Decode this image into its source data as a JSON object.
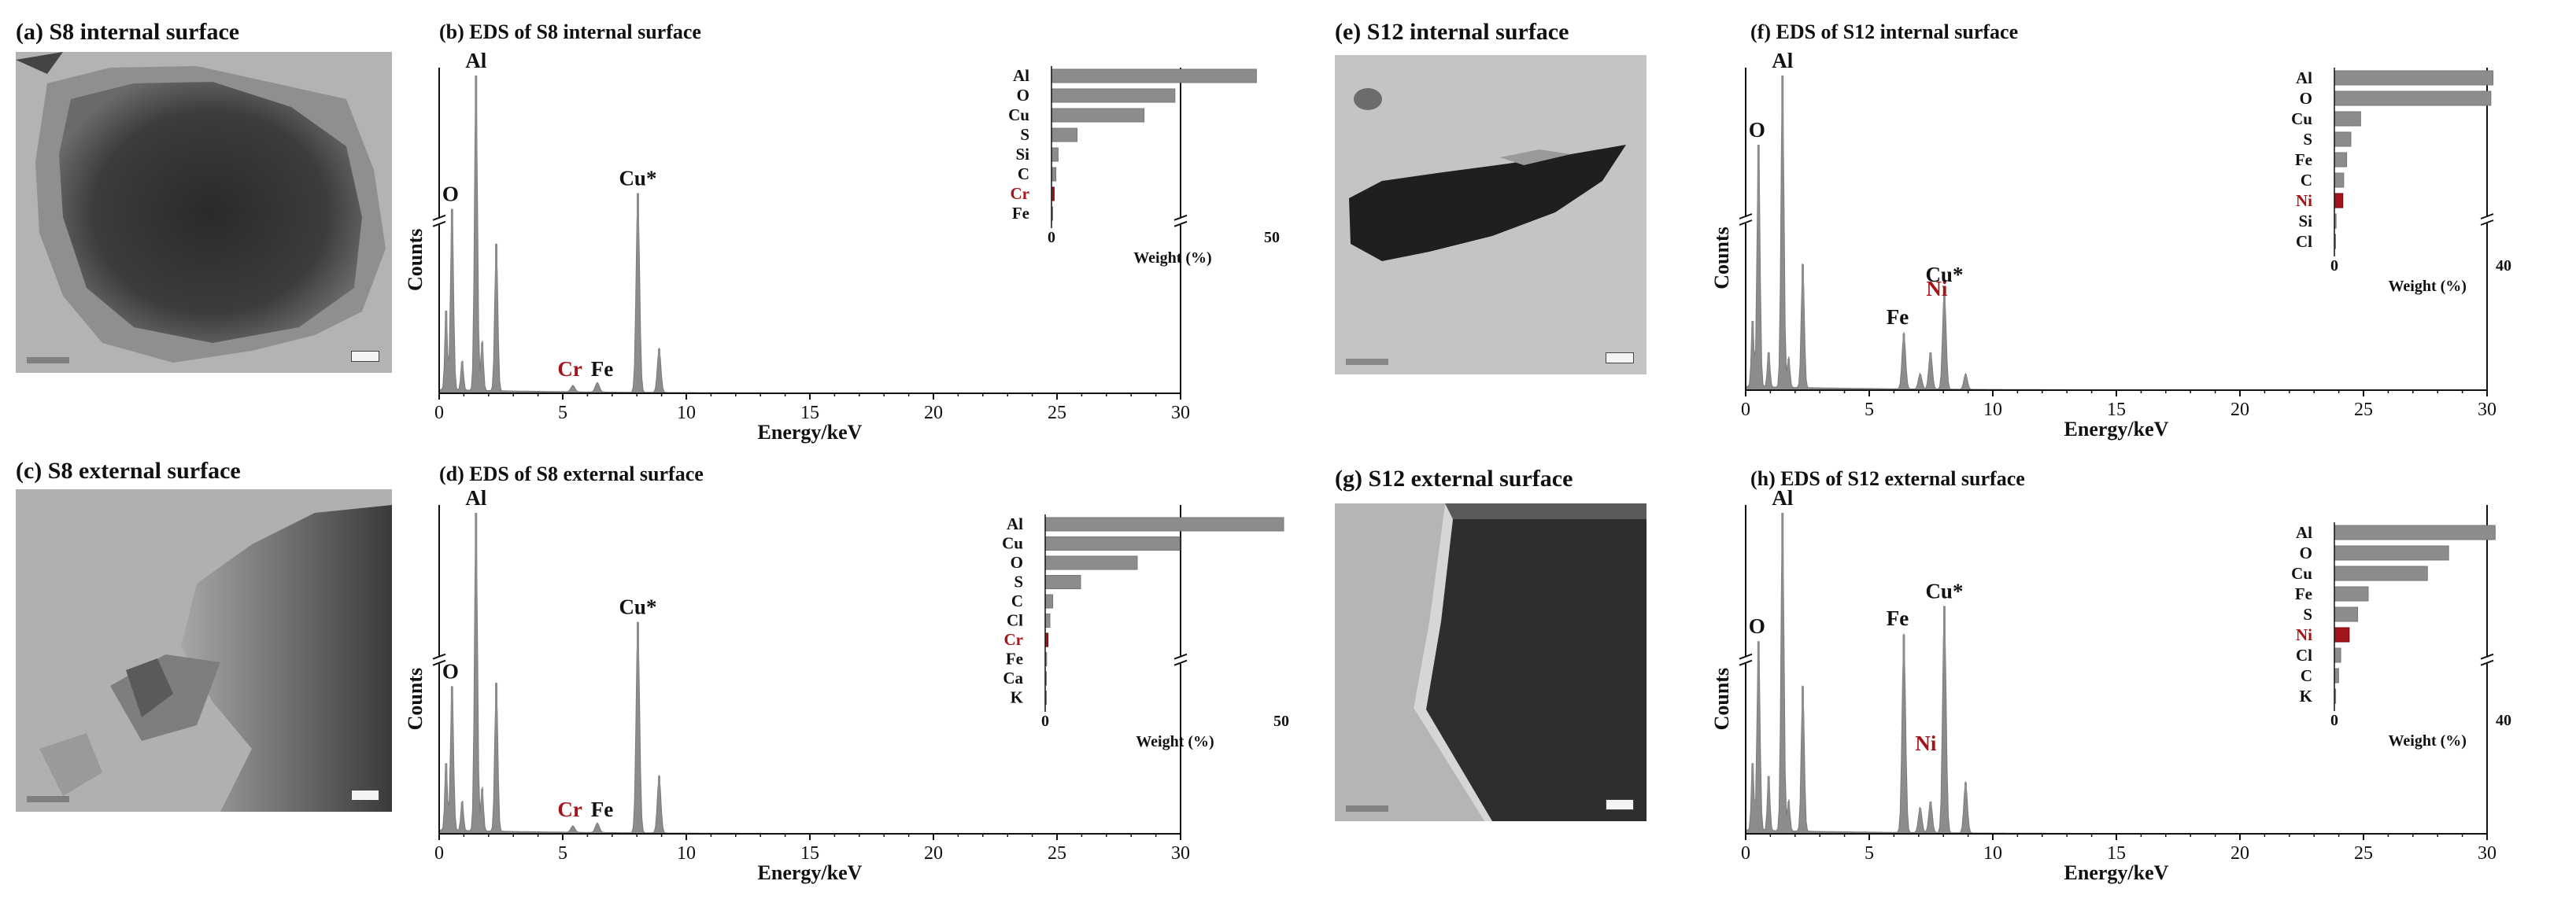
{
  "titles": {
    "a": "(a) S8 internal surface",
    "b": "(b) EDS of S8 internal surface",
    "c": "(c) S8 external surface",
    "d": "(d) EDS of S8 external surface",
    "e": "(e) S12 internal surface",
    "f": "(f) EDS of S12 internal surface",
    "g": "(g) S12 external surface",
    "h": "(h) EDS of S12 external surface"
  },
  "colors": {
    "bar": "#8c8c8c",
    "highlight": "#a3151a",
    "spectrum": "#8c8c8c",
    "text": "#111111"
  },
  "chart_data": [
    {
      "id": "b",
      "type": "area",
      "title": "(b) EDS of S8 internal surface",
      "xlabel": "Energy/keV",
      "ylabel": "Counts",
      "xlim": [
        0,
        30
      ],
      "xticks": [
        0,
        5,
        10,
        15,
        20,
        25,
        30
      ],
      "peaks": [
        {
          "x": 0.28,
          "h": 0.26,
          "w": 0.05
        },
        {
          "x": 0.52,
          "h": 0.58,
          "w": 0.06
        },
        {
          "x": 0.93,
          "h": 0.1,
          "w": 0.05
        },
        {
          "x": 1.49,
          "h": 1.0,
          "w": 0.06
        },
        {
          "x": 1.74,
          "h": 0.16,
          "w": 0.05
        },
        {
          "x": 2.31,
          "h": 0.47,
          "w": 0.06
        },
        {
          "x": 5.41,
          "h": 0.02,
          "w": 0.08
        },
        {
          "x": 6.4,
          "h": 0.03,
          "w": 0.08
        },
        {
          "x": 8.04,
          "h": 0.63,
          "w": 0.07
        },
        {
          "x": 8.9,
          "h": 0.14,
          "w": 0.07
        }
      ],
      "peak_labels": [
        {
          "text": "O",
          "x": 0.52,
          "h": 0.58,
          "highlight": false
        },
        {
          "text": "Al",
          "x": 1.49,
          "h": 1.0,
          "highlight": false
        },
        {
          "text": "Cu*",
          "x": 8.04,
          "h": 0.63,
          "highlight": false
        },
        {
          "text": "Cr",
          "x": 5.41,
          "h": 0.02,
          "highlight": true
        },
        {
          "text": "Fe",
          "x": 6.4,
          "h": 0.02,
          "highlight": false
        }
      ],
      "inset": {
        "type": "bar",
        "xlabel": "Weight (%)",
        "xlim": [
          0,
          50
        ],
        "xticks": [
          0,
          50
        ],
        "categories": [
          "Al",
          "O",
          "Cu",
          "S",
          "Si",
          "C",
          "Cr",
          "Fe"
        ],
        "values": [
          46.5,
          28.0,
          21.0,
          5.8,
          1.5,
          1.0,
          0.6,
          0.2
        ],
        "highlight": [
          "Cr"
        ]
      }
    },
    {
      "id": "d",
      "type": "area",
      "title": "(d) EDS of S8 external surface",
      "xlabel": "Energy/keV",
      "ylabel": "Counts",
      "xlim": [
        0,
        30
      ],
      "xticks": [
        0,
        5,
        10,
        15,
        20,
        25,
        30
      ],
      "peaks": [
        {
          "x": 0.28,
          "h": 0.22,
          "w": 0.05
        },
        {
          "x": 0.52,
          "h": 0.46,
          "w": 0.06
        },
        {
          "x": 0.93,
          "h": 0.1,
          "w": 0.05
        },
        {
          "x": 1.49,
          "h": 1.0,
          "w": 0.06
        },
        {
          "x": 1.74,
          "h": 0.14,
          "w": 0.05
        },
        {
          "x": 2.31,
          "h": 0.47,
          "w": 0.06
        },
        {
          "x": 5.41,
          "h": 0.02,
          "w": 0.08
        },
        {
          "x": 6.4,
          "h": 0.03,
          "w": 0.08
        },
        {
          "x": 8.04,
          "h": 0.66,
          "w": 0.07
        },
        {
          "x": 8.9,
          "h": 0.18,
          "w": 0.07
        }
      ],
      "peak_labels": [
        {
          "text": "O",
          "x": 0.52,
          "h": 0.46,
          "highlight": false
        },
        {
          "text": "Al",
          "x": 1.49,
          "h": 1.0,
          "highlight": false
        },
        {
          "text": "Cu*",
          "x": 8.04,
          "h": 0.66,
          "highlight": false
        },
        {
          "text": "Cr",
          "x": 5.41,
          "h": 0.02,
          "highlight": true
        },
        {
          "text": "Fe",
          "x": 6.4,
          "h": 0.02,
          "highlight": false
        }
      ],
      "inset": {
        "type": "bar",
        "xlabel": "Weight (%)",
        "xlim": [
          0,
          50
        ],
        "xticks": [
          0,
          50
        ],
        "categories": [
          "Al",
          "Cu",
          "O",
          "S",
          "C",
          "Cl",
          "Cr",
          "Fe",
          "Ca",
          "K"
        ],
        "values": [
          50.5,
          28.5,
          19.5,
          7.5,
          1.6,
          1.0,
          0.6,
          0.3,
          0.2,
          0.1
        ],
        "highlight": [
          "Cr"
        ]
      }
    },
    {
      "id": "f",
      "type": "area",
      "title": "(f) EDS of S12 internal surface",
      "xlabel": "Energy/keV",
      "ylabel": "Counts",
      "xlim": [
        0,
        30
      ],
      "xticks": [
        0,
        5,
        10,
        15,
        20,
        25,
        30
      ],
      "peaks": [
        {
          "x": 0.28,
          "h": 0.22,
          "w": 0.05
        },
        {
          "x": 0.52,
          "h": 0.78,
          "w": 0.06
        },
        {
          "x": 0.93,
          "h": 0.12,
          "w": 0.05
        },
        {
          "x": 1.49,
          "h": 1.0,
          "w": 0.06
        },
        {
          "x": 1.74,
          "h": 0.1,
          "w": 0.05
        },
        {
          "x": 2.31,
          "h": 0.4,
          "w": 0.06
        },
        {
          "x": 6.4,
          "h": 0.18,
          "w": 0.07
        },
        {
          "x": 7.06,
          "h": 0.05,
          "w": 0.07
        },
        {
          "x": 7.48,
          "h": 0.12,
          "w": 0.07
        },
        {
          "x": 8.04,
          "h": 0.32,
          "w": 0.07
        },
        {
          "x": 8.9,
          "h": 0.05,
          "w": 0.07
        }
      ],
      "peak_labels": [
        {
          "text": "O",
          "x": 0.52,
          "h": 0.78,
          "highlight": false
        },
        {
          "text": "Al",
          "x": 1.49,
          "h": 1.0,
          "highlight": false
        },
        {
          "text": "Fe",
          "x": 6.4,
          "h": 0.18,
          "highlight": false
        },
        {
          "text": "Ni",
          "x": 7.48,
          "h": 0.12,
          "highlight": true
        },
        {
          "text": "Cu*",
          "x": 8.04,
          "h": 0.32,
          "highlight": false
        }
      ],
      "inset": {
        "type": "bar",
        "xlabel": "Weight (%)",
        "xlim": [
          0,
          40
        ],
        "xticks": [
          0,
          40
        ],
        "categories": [
          "Al",
          "O",
          "Cu",
          "S",
          "Fe",
          "C",
          "Ni",
          "Si",
          "Cl"
        ],
        "values": [
          37.5,
          37.0,
          6.2,
          3.9,
          2.9,
          2.2,
          2.0,
          0.4,
          0.2
        ],
        "highlight": [
          "Ni"
        ]
      }
    },
    {
      "id": "h",
      "type": "area",
      "title": "(h) EDS of S12 external surface",
      "xlabel": "Energy/keV",
      "ylabel": "Counts",
      "xlim": [
        0,
        30
      ],
      "xticks": [
        0,
        5,
        10,
        15,
        20,
        25,
        30
      ],
      "peaks": [
        {
          "x": 0.28,
          "h": 0.22,
          "w": 0.05
        },
        {
          "x": 0.52,
          "h": 0.6,
          "w": 0.06
        },
        {
          "x": 0.93,
          "h": 0.18,
          "w": 0.05
        },
        {
          "x": 1.49,
          "h": 1.0,
          "w": 0.06
        },
        {
          "x": 1.74,
          "h": 0.1,
          "w": 0.05
        },
        {
          "x": 2.31,
          "h": 0.46,
          "w": 0.06
        },
        {
          "x": 6.4,
          "h": 0.62,
          "w": 0.07
        },
        {
          "x": 7.06,
          "h": 0.08,
          "w": 0.07
        },
        {
          "x": 7.48,
          "h": 0.1,
          "w": 0.07
        },
        {
          "x": 8.04,
          "h": 0.71,
          "w": 0.07
        },
        {
          "x": 8.9,
          "h": 0.16,
          "w": 0.07
        }
      ],
      "peak_labels": [
        {
          "text": "O",
          "x": 0.52,
          "h": 0.6,
          "highlight": false
        },
        {
          "text": "Al",
          "x": 1.49,
          "h": 1.0,
          "highlight": false
        },
        {
          "text": "Fe",
          "x": 6.4,
          "h": 0.62,
          "highlight": false
        },
        {
          "text": "Cu*",
          "x": 8.04,
          "h": 0.71,
          "highlight": false
        },
        {
          "text": "Ni",
          "x": 7.48,
          "h": 0.1,
          "highlight": true
        }
      ],
      "inset": {
        "type": "bar",
        "xlabel": "Weight (%)",
        "xlim": [
          0,
          40
        ],
        "xticks": [
          0,
          40
        ],
        "categories": [
          "Al",
          "O",
          "Cu",
          "Fe",
          "S",
          "Ni",
          "Cl",
          "C",
          "K"
        ],
        "values": [
          38.0,
          27.0,
          22.0,
          8.0,
          5.5,
          3.5,
          1.5,
          1.0,
          0.3
        ],
        "highlight": [
          "Ni"
        ]
      }
    }
  ]
}
